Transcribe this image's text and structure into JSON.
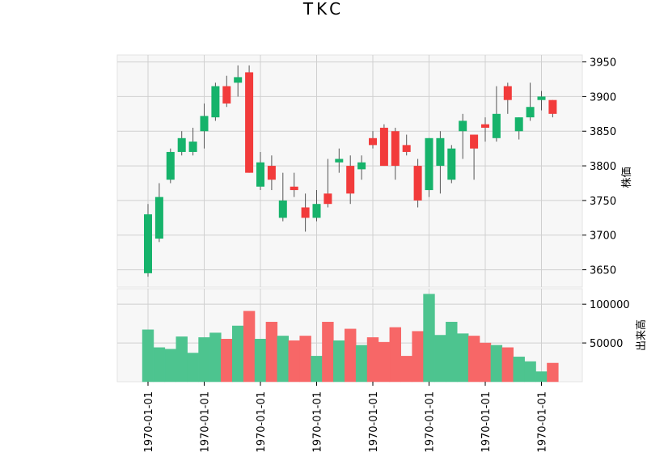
{
  "chart_data": {
    "type": "candlestick",
    "title": "TKC",
    "up_color": "#16b36b",
    "down_color": "#f23b3b",
    "volume_up_color": "#4dc48f",
    "volume_down_color": "#f76767",
    "price_panel": {
      "ylabel": "株価",
      "ylim": [
        3625,
        3960
      ],
      "yticks": [
        3650,
        3700,
        3750,
        3800,
        3850,
        3900,
        3950
      ],
      "grid": true
    },
    "volume_panel": {
      "ylabel": "出来高",
      "ylim": [
        0,
        120000
      ],
      "yticks": [
        50000,
        100000
      ],
      "ytick_labels": [
        "50000",
        "100000"
      ],
      "grid": true
    },
    "x_tick_labels": [
      "1970-01-01",
      "1970-01-01",
      "1970-01-01",
      "1970-01-01",
      "1970-01-01",
      "1970-01-01",
      "1970-01-01",
      "1970-01-01"
    ],
    "x_tick_positions": [
      0,
      5,
      10,
      15,
      20,
      25,
      30,
      35
    ],
    "candles": [
      {
        "o": 3645,
        "h": 3745,
        "l": 3640,
        "c": 3730,
        "v": 67000
      },
      {
        "o": 3695,
        "h": 3775,
        "l": 3690,
        "c": 3755,
        "v": 44000
      },
      {
        "o": 3780,
        "h": 3825,
        "l": 3775,
        "c": 3820,
        "v": 42000
      },
      {
        "o": 3820,
        "h": 3850,
        "l": 3815,
        "c": 3840,
        "v": 58000
      },
      {
        "o": 3820,
        "h": 3855,
        "l": 3815,
        "c": 3835,
        "v": 37000
      },
      {
        "o": 3850,
        "h": 3890,
        "l": 3825,
        "c": 3872,
        "v": 57000
      },
      {
        "o": 3870,
        "h": 3920,
        "l": 3865,
        "c": 3915,
        "v": 63000
      },
      {
        "o": 3915,
        "h": 3930,
        "l": 3885,
        "c": 3890,
        "v": 55000
      },
      {
        "o": 3920,
        "h": 3945,
        "l": 3900,
        "c": 3928,
        "v": 72000
      },
      {
        "o": 3935,
        "h": 3945,
        "l": 3790,
        "c": 3790,
        "v": 91000
      },
      {
        "o": 3770,
        "h": 3820,
        "l": 3765,
        "c": 3805,
        "v": 55000
      },
      {
        "o": 3800,
        "h": 3815,
        "l": 3765,
        "c": 3780,
        "v": 77000
      },
      {
        "o": 3725,
        "h": 3790,
        "l": 3720,
        "c": 3750,
        "v": 59000
      },
      {
        "o": 3770,
        "h": 3790,
        "l": 3755,
        "c": 3765,
        "v": 53000
      },
      {
        "o": 3740,
        "h": 3760,
        "l": 3705,
        "c": 3725,
        "v": 59000
      },
      {
        "o": 3725,
        "h": 3765,
        "l": 3720,
        "c": 3745,
        "v": 33000
      },
      {
        "o": 3760,
        "h": 3810,
        "l": 3740,
        "c": 3745,
        "v": 77000
      },
      {
        "o": 3805,
        "h": 3825,
        "l": 3790,
        "c": 3810,
        "v": 53000
      },
      {
        "o": 3800,
        "h": 3815,
        "l": 3745,
        "c": 3760,
        "v": 68000
      },
      {
        "o": 3795,
        "h": 3815,
        "l": 3780,
        "c": 3805,
        "v": 47000
      },
      {
        "o": 3840,
        "h": 3850,
        "l": 3825,
        "c": 3830,
        "v": 57000
      },
      {
        "o": 3855,
        "h": 3860,
        "l": 3800,
        "c": 3800,
        "v": 51000
      },
      {
        "o": 3850,
        "h": 3855,
        "l": 3780,
        "c": 3800,
        "v": 70000
      },
      {
        "o": 3830,
        "h": 3845,
        "l": 3815,
        "c": 3820,
        "v": 33000
      },
      {
        "o": 3800,
        "h": 3810,
        "l": 3740,
        "c": 3750,
        "v": 65000
      },
      {
        "o": 3765,
        "h": 3840,
        "l": 3755,
        "c": 3840,
        "v": 113000
      },
      {
        "o": 3800,
        "h": 3850,
        "l": 3760,
        "c": 3840,
        "v": 60000
      },
      {
        "o": 3780,
        "h": 3830,
        "l": 3775,
        "c": 3825,
        "v": 77000
      },
      {
        "o": 3850,
        "h": 3875,
        "l": 3810,
        "c": 3865,
        "v": 62000
      },
      {
        "o": 3845,
        "h": 3845,
        "l": 3780,
        "c": 3825,
        "v": 59000
      },
      {
        "o": 3860,
        "h": 3870,
        "l": 3835,
        "c": 3855,
        "v": 50000
      },
      {
        "o": 3840,
        "h": 3915,
        "l": 3835,
        "c": 3875,
        "v": 47000
      },
      {
        "o": 3915,
        "h": 3920,
        "l": 3875,
        "c": 3895,
        "v": 44000
      },
      {
        "o": 3850,
        "h": 3870,
        "l": 3838,
        "c": 3870,
        "v": 32000
      },
      {
        "o": 3870,
        "h": 3920,
        "l": 3865,
        "c": 3885,
        "v": 26000
      },
      {
        "o": 3895,
        "h": 3908,
        "l": 3880,
        "c": 3900,
        "v": 13000
      },
      {
        "o": 3895,
        "h": 3895,
        "l": 3870,
        "c": 3875,
        "v": 24000
      }
    ]
  }
}
